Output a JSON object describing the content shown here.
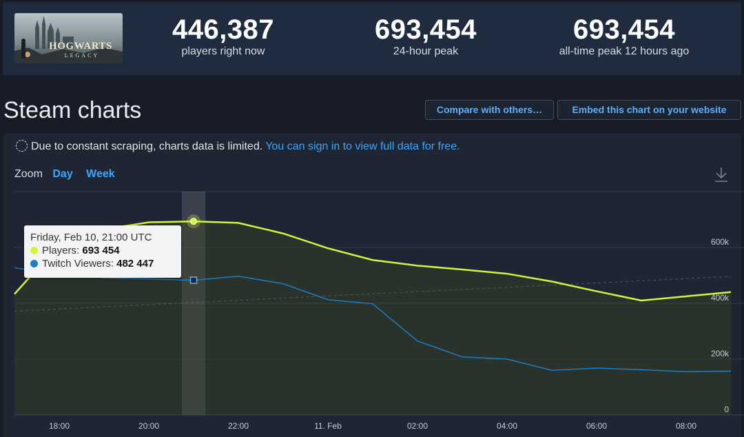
{
  "header": {
    "game_logo_text": "HOGWARTS LEGACY",
    "stats": [
      {
        "value": "446,387",
        "label": "players right now"
      },
      {
        "value": "693,454",
        "label": "24-hour peak"
      },
      {
        "value": "693,454",
        "label": "all-time peak 12 hours ago"
      }
    ]
  },
  "page_title": "Steam charts",
  "buttons": {
    "compare": "Compare with others…",
    "embed": "Embed this chart on your website"
  },
  "notice": {
    "text": "Due to constant scraping, charts data is limited.",
    "link": "You can sign in to view full data for free."
  },
  "zoom": {
    "label": "Zoom",
    "options": [
      "Day",
      "Week"
    ]
  },
  "tooltip": {
    "date": "Friday, Feb 10, 21:00 UTC",
    "players_label": "Players:",
    "players_value": "693 454",
    "twitch_label": "Twitch Viewers:",
    "twitch_value": "482 447"
  },
  "colors": {
    "players": "#d6f53a",
    "twitch": "#1a7fc4",
    "link": "#3aa7ff",
    "background": "#181c26"
  },
  "chart_data": {
    "type": "line",
    "x": [
      "17:00",
      "18:00",
      "19:00",
      "20:00",
      "21:00",
      "22:00",
      "23:00",
      "11. Feb",
      "01:00",
      "02:00",
      "03:00",
      "04:00",
      "05:00",
      "06:00",
      "07:00",
      "08:00",
      "09:00"
    ],
    "x_tick_labels": [
      "18:00",
      "20:00",
      "22:00",
      "11. Feb",
      "02:00",
      "04:00",
      "06:00",
      "08:00"
    ],
    "series": [
      {
        "name": "Players",
        "values": [
          433000,
          612000,
          665000,
          690000,
          693454,
          688000,
          650000,
          597000,
          555000,
          535000,
          521000,
          506000,
          478000,
          443000,
          410000,
          425000,
          440000
        ]
      },
      {
        "name": "Twitch Viewers",
        "values": [
          527000,
          505000,
          491000,
          487000,
          482447,
          497000,
          470000,
          413000,
          398000,
          265000,
          208000,
          200000,
          160000,
          168000,
          162000,
          155000,
          157000
        ]
      }
    ],
    "trend": [
      372000,
      496000
    ],
    "highlight_index": 4,
    "y_ticks": [
      0,
      200000,
      400000,
      600000
    ],
    "y_tick_labels": [
      "0",
      "200k",
      "400k",
      "600k"
    ],
    "ylim": [
      0,
      800000
    ],
    "legend": "none",
    "grid": true
  }
}
